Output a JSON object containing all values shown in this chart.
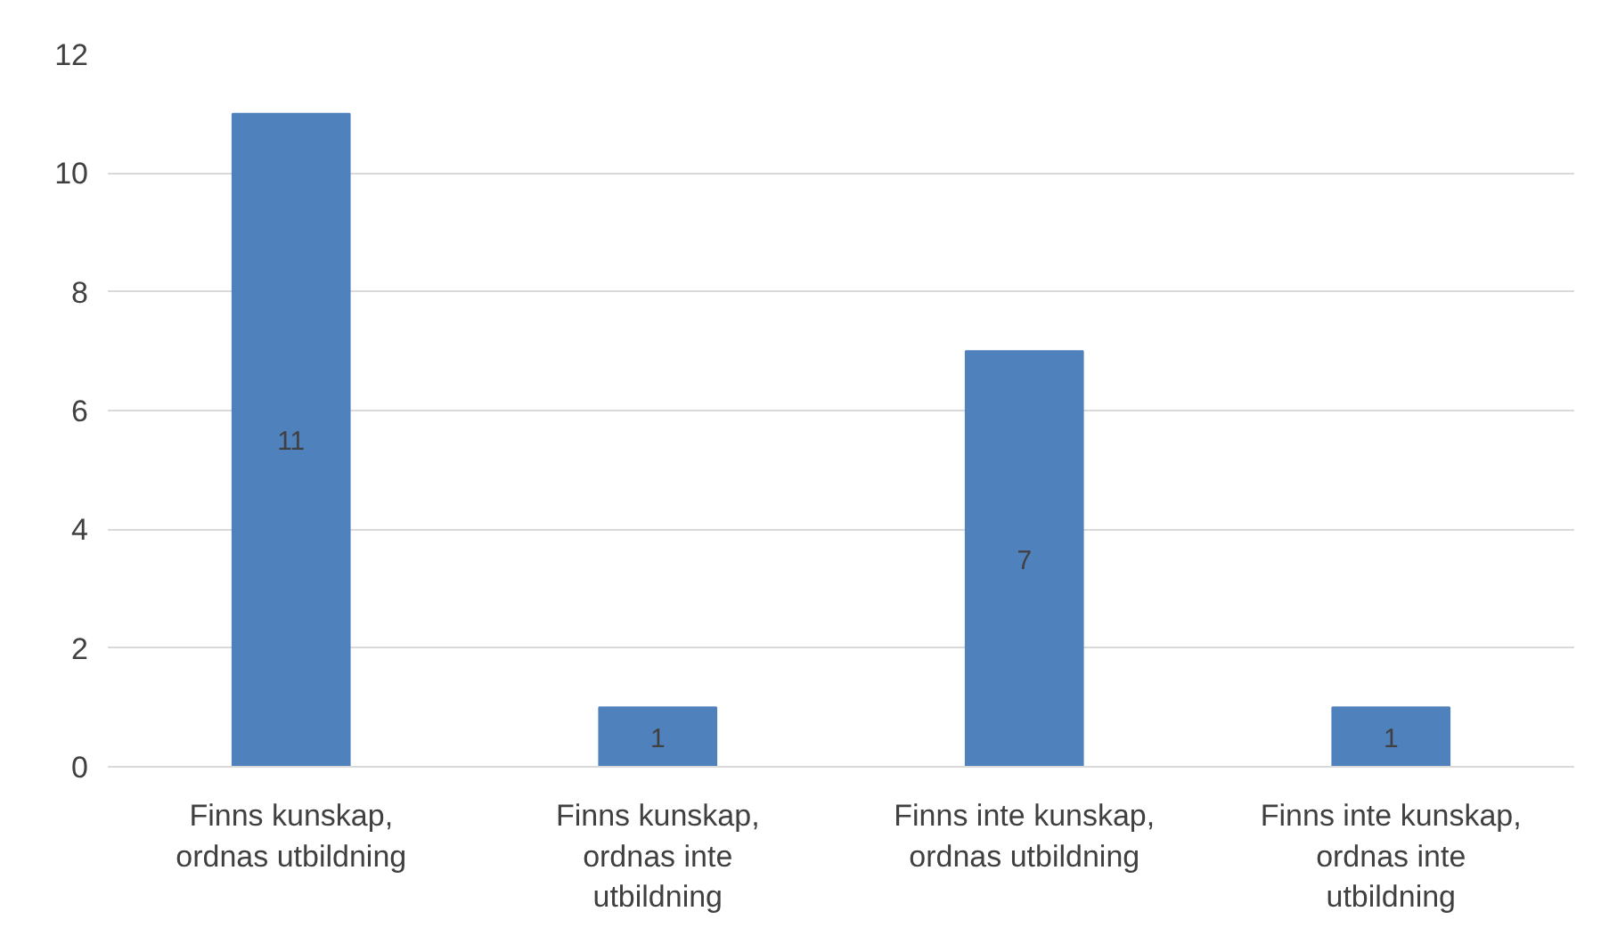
{
  "chart_data": {
    "type": "bar",
    "categories": [
      "Finns kunskap,\nordnas utbildning",
      "Finns kunskap,\nordnas inte\nutbildning",
      "Finns inte kunskap,\nordnas utbildning",
      "Finns inte kunskap,\nordnas inte\nutbildning"
    ],
    "values": [
      11,
      1,
      7,
      1
    ],
    "value_labels": [
      "11",
      "1",
      "7",
      "1"
    ],
    "color": "#4f81bd",
    "ylim": [
      0,
      12
    ],
    "yticks": [
      0,
      2,
      4,
      6,
      8,
      10,
      12
    ],
    "grid": "y"
  }
}
